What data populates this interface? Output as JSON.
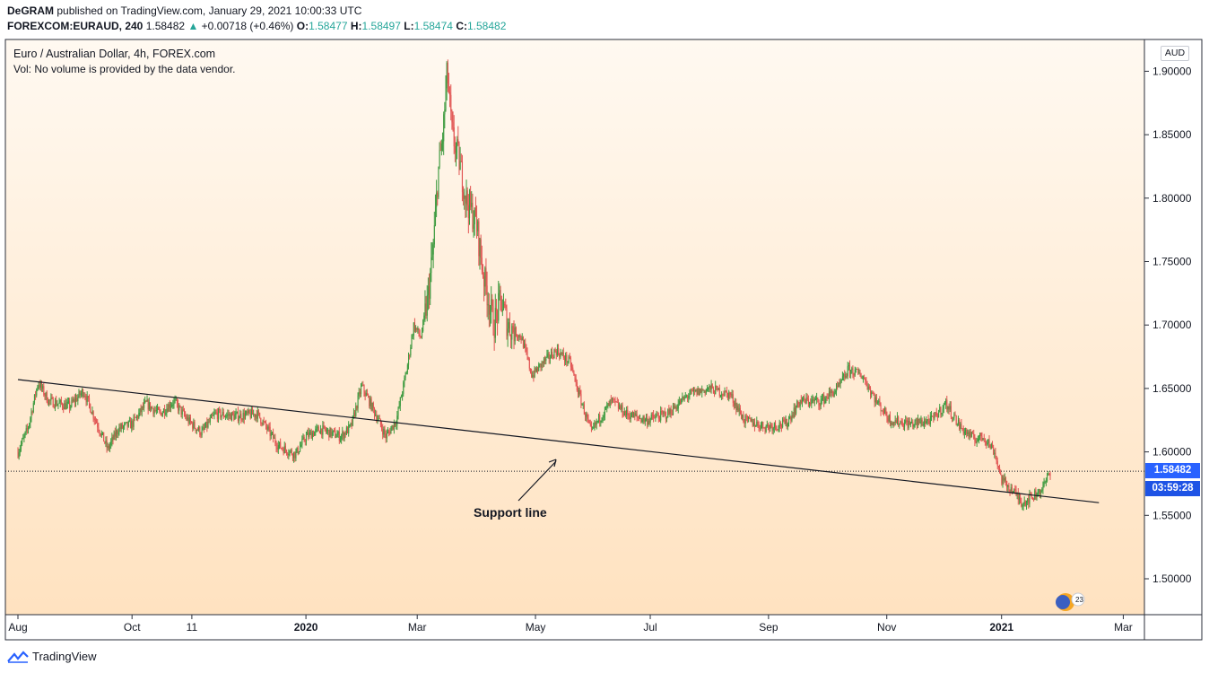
{
  "header": {
    "author": "DeGRAM",
    "published_text": "published on TradingView.com, January 29, 2021 10:00:33 UTC",
    "symbol": "FOREXCOM:EURAUD, 240",
    "price": "1.58482",
    "change_arrow": "▲",
    "change": "+0.00718 (+0.46%)",
    "o_label": "O:",
    "o_value": "1.58477",
    "h_label": "H:",
    "h_value": "1.58497",
    "l_label": "L:",
    "l_value": "1.58474",
    "c_label": "C:",
    "c_value": "1.58482"
  },
  "legend": {
    "title": "Euro / Australian Dollar, 4h, FOREX.com",
    "volume": "Vol: No volume is provided by the data vendor."
  },
  "price_axis": {
    "currency": "AUD",
    "last_price": "1.58482",
    "countdown": "03:59:28"
  },
  "annotation": {
    "text": "Support line"
  },
  "footer": {
    "brand": "TradingView"
  },
  "colors": {
    "up": "#26a69a",
    "up_candle": "#3f9b41",
    "down_candle": "#e15452",
    "bg_top": "#fff9f1",
    "bg_bottom": "#ffe2c0",
    "label_bg": "#2962ff"
  },
  "chart_data": {
    "type": "candlestick",
    "title": "Euro / Australian Dollar, 4h, FOREX.com",
    "ylabel": "AUD",
    "ylim": [
      1.47,
      1.92
    ],
    "yticks": [
      1.5,
      1.55,
      1.6,
      1.65,
      1.7,
      1.75,
      1.8,
      1.85,
      1.9
    ],
    "ytick_labels": [
      "1.50000",
      "1.55000",
      "1.60000",
      "1.65000",
      "1.70000",
      "1.75000",
      "1.80000",
      "1.85000",
      "1.90000"
    ],
    "xlim": [
      2019.58,
      2021.23
    ],
    "xticks": [
      {
        "label": "Aug",
        "t": 2019.586,
        "bold": false
      },
      {
        "label": "Oct",
        "t": 2019.75,
        "bold": false
      },
      {
        "label": "11",
        "t": 2019.836,
        "bold": false
      },
      {
        "label": "2020",
        "t": 2020.0,
        "bold": true
      },
      {
        "label": "Mar",
        "t": 2020.16,
        "bold": false
      },
      {
        "label": "May",
        "t": 2020.33,
        "bold": false
      },
      {
        "label": "Jul",
        "t": 2020.495,
        "bold": false
      },
      {
        "label": "Sep",
        "t": 2020.665,
        "bold": false
      },
      {
        "label": "Nov",
        "t": 2020.835,
        "bold": false
      },
      {
        "label": "2021",
        "t": 2021.0,
        "bold": true
      },
      {
        "label": "Mar",
        "t": 2021.175,
        "bold": false
      }
    ],
    "price_path": [
      [
        2019.586,
        1.6
      ],
      [
        2019.6,
        1.618
      ],
      [
        2019.615,
        1.655
      ],
      [
        2019.63,
        1.64
      ],
      [
        2019.66,
        1.636
      ],
      [
        2019.68,
        1.648
      ],
      [
        2019.7,
        1.622
      ],
      [
        2019.715,
        1.602
      ],
      [
        2019.73,
        1.618
      ],
      [
        2019.75,
        1.622
      ],
      [
        2019.77,
        1.638
      ],
      [
        2019.79,
        1.63
      ],
      [
        2019.81,
        1.64
      ],
      [
        2019.83,
        1.625
      ],
      [
        2019.85,
        1.615
      ],
      [
        2019.87,
        1.63
      ],
      [
        2019.9,
        1.628
      ],
      [
        2019.93,
        1.63
      ],
      [
        2019.96,
        1.605
      ],
      [
        2019.985,
        1.598
      ],
      [
        2020.0,
        1.612
      ],
      [
        2020.02,
        1.618
      ],
      [
        2020.05,
        1.612
      ],
      [
        2020.065,
        1.62
      ],
      [
        2020.08,
        1.652
      ],
      [
        2020.1,
        1.63
      ],
      [
        2020.115,
        1.612
      ],
      [
        2020.13,
        1.625
      ],
      [
        2020.145,
        1.665
      ],
      [
        2020.155,
        1.7
      ],
      [
        2020.165,
        1.69
      ],
      [
        2020.175,
        1.72
      ],
      [
        2020.183,
        1.76
      ],
      [
        2020.19,
        1.82
      ],
      [
        2020.197,
        1.85
      ],
      [
        2020.203,
        1.9
      ],
      [
        2020.21,
        1.85
      ],
      [
        2020.22,
        1.83
      ],
      [
        2020.23,
        1.8
      ],
      [
        2020.245,
        1.78
      ],
      [
        2020.255,
        1.74
      ],
      [
        2020.27,
        1.7
      ],
      [
        2020.28,
        1.72
      ],
      [
        2020.29,
        1.7
      ],
      [
        2020.31,
        1.69
      ],
      [
        2020.325,
        1.66
      ],
      [
        2020.34,
        1.67
      ],
      [
        2020.36,
        1.68
      ],
      [
        2020.38,
        1.67
      ],
      [
        2020.39,
        1.65
      ],
      [
        2020.41,
        1.615
      ],
      [
        2020.42,
        1.625
      ],
      [
        2020.44,
        1.64
      ],
      [
        2020.46,
        1.63
      ],
      [
        2020.49,
        1.625
      ],
      [
        2020.52,
        1.63
      ],
      [
        2020.55,
        1.645
      ],
      [
        2020.58,
        1.65
      ],
      [
        2020.61,
        1.645
      ],
      [
        2020.63,
        1.625
      ],
      [
        2020.66,
        1.62
      ],
      [
        2020.69,
        1.622
      ],
      [
        2020.71,
        1.64
      ],
      [
        2020.74,
        1.64
      ],
      [
        2020.765,
        1.65
      ],
      [
        2020.78,
        1.665
      ],
      [
        2020.8,
        1.66
      ],
      [
        2020.82,
        1.64
      ],
      [
        2020.84,
        1.625
      ],
      [
        2020.87,
        1.622
      ],
      [
        2020.9,
        1.625
      ],
      [
        2020.92,
        1.638
      ],
      [
        2020.94,
        1.62
      ],
      [
        2020.96,
        1.61
      ],
      [
        2020.975,
        1.612
      ],
      [
        2020.99,
        1.6
      ],
      [
        2021.0,
        1.578
      ],
      [
        2021.015,
        1.57
      ],
      [
        2021.03,
        1.56
      ],
      [
        2021.045,
        1.565
      ],
      [
        2021.06,
        1.572
      ],
      [
        2021.07,
        1.585
      ]
    ],
    "support_line": {
      "from": [
        2019.586,
        1.657
      ],
      "to": [
        2021.14,
        1.56
      ]
    },
    "last_price": 1.58482
  }
}
